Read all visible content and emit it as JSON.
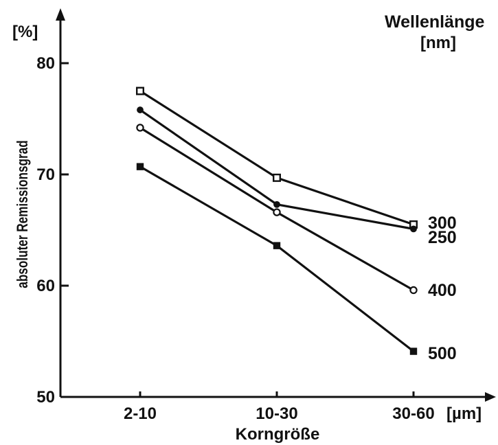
{
  "chart_data": {
    "type": "line",
    "ylabel": "absoluter Remissionsgrad",
    "yunit": "[%]",
    "xlabel": "Korngröße",
    "xunit": "[µm]",
    "categories": [
      "2-10",
      "10-30",
      "30-60"
    ],
    "ylim": [
      50,
      80
    ],
    "yticks": [
      50,
      60,
      70,
      80
    ],
    "legend_title": "Wellenlänge",
    "legend_unit": "[nm]",
    "grid": false,
    "series": [
      {
        "name": "300",
        "marker": "open-square",
        "values": [
          77.5,
          69.7,
          65.5
        ]
      },
      {
        "name": "250",
        "marker": "filled-circle",
        "values": [
          75.8,
          67.3,
          65.1
        ]
      },
      {
        "name": "400",
        "marker": "open-circle",
        "values": [
          74.2,
          66.6,
          59.6
        ]
      },
      {
        "name": "500",
        "marker": "filled-square",
        "values": [
          70.7,
          63.6,
          54.1
        ]
      }
    ]
  }
}
